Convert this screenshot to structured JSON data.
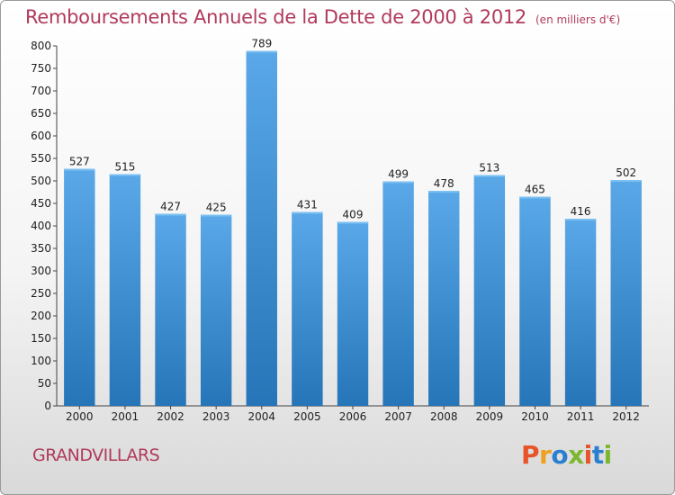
{
  "header": {
    "title": "Remboursements Annuels de la Dette de 2000 à 2012",
    "unit": "(en milliers d'€)"
  },
  "footer": {
    "commune": "GRANDVILLARS",
    "logo_text": "Proxiti"
  },
  "colors": {
    "title": "#b03a5c",
    "bar_top": "#5aa8e8",
    "bar_bottom": "#2575b8",
    "logo": [
      "#e8542a",
      "#f0a020",
      "#2a7fd0",
      "#7cb82f",
      "#e8542a",
      "#2a7fd0",
      "#7cb82f"
    ]
  },
  "chart_data": {
    "type": "bar",
    "title": "Remboursements Annuels de la Dette de 2000 à 2012",
    "xlabel": "",
    "ylabel": "",
    "categories": [
      "2000",
      "2001",
      "2002",
      "2003",
      "2004",
      "2005",
      "2006",
      "2007",
      "2008",
      "2009",
      "2010",
      "2011",
      "2012"
    ],
    "values": [
      527,
      515,
      427,
      425,
      789,
      431,
      409,
      499,
      478,
      513,
      465,
      416,
      502
    ],
    "ylim": [
      0,
      800
    ],
    "ytick_step": 50,
    "grid": false,
    "data_labels": true
  }
}
